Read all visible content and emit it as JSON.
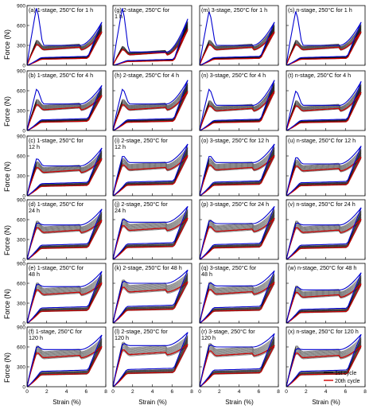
{
  "figure": {
    "ylabel": "Force (N)",
    "xlabel": "Strain (%)",
    "x_ticks": [
      "0",
      "2",
      "4",
      "6",
      "8"
    ],
    "y_ticks": [
      "0",
      "300",
      "600",
      "900"
    ],
    "legend": {
      "entries": [
        {
          "label": "1st cycle",
          "color": "#000000"
        },
        {
          "label": "20th cycle",
          "color": "#d10000"
        }
      ],
      "blue_color": "#0000d0"
    }
  },
  "chart_data": [
    {
      "type": "line",
      "panel": "a",
      "label": "(a) 1-stage, 250°C for 1 h",
      "label2": "",
      "row": 0,
      "col": 0,
      "plateau": 300,
      "first_peak": 900,
      "maxF": 650,
      "xlim": [
        0,
        8
      ],
      "ylim": [
        0,
        900
      ]
    },
    {
      "type": "line",
      "panel": "g",
      "label": "(g) 2-stage, 250°C for",
      "label2": "1 h",
      "row": 0,
      "col": 1,
      "plateau": 200,
      "first_peak": 900,
      "maxF": 700,
      "xlim": [
        0,
        8
      ],
      "ylim": [
        0,
        900
      ]
    },
    {
      "type": "line",
      "panel": "m",
      "label": "(m) 3-stage, 250°C for 1 h",
      "label2": "",
      "row": 0,
      "col": 2,
      "plateau": 300,
      "first_peak": 850,
      "maxF": 650,
      "xlim": [
        0,
        8
      ],
      "ylim": [
        0,
        900
      ]
    },
    {
      "type": "line",
      "panel": "s",
      "label": "(s) n-stage, 250°C for 1 h",
      "label2": "",
      "row": 0,
      "col": 3,
      "plateau": 300,
      "first_peak": 850,
      "maxF": 650,
      "xlim": [
        0,
        8
      ],
      "ylim": [
        0,
        900
      ]
    },
    {
      "type": "line",
      "panel": "b",
      "label": "(b) 1-stage, 250°C for 4 h",
      "label2": "",
      "row": 1,
      "col": 0,
      "plateau": 400,
      "first_peak": 650,
      "maxF": 680,
      "xlim": [
        0,
        8
      ],
      "ylim": [
        0,
        900
      ]
    },
    {
      "type": "line",
      "panel": "h",
      "label": "(h) 2-stage, 250°C for 4 h",
      "label2": "",
      "row": 1,
      "col": 1,
      "plateau": 400,
      "first_peak": 650,
      "maxF": 760,
      "xlim": [
        0,
        8
      ],
      "ylim": [
        0,
        900
      ]
    },
    {
      "type": "line",
      "panel": "n",
      "label": "(n) 3-stage, 250°C for 4 h",
      "label2": "",
      "row": 1,
      "col": 2,
      "plateau": 380,
      "first_peak": 650,
      "maxF": 760,
      "xlim": [
        0,
        8
      ],
      "ylim": [
        0,
        900
      ]
    },
    {
      "type": "line",
      "panel": "t",
      "label": "(t) n-stage, 250°C for 4 h",
      "label2": "",
      "row": 1,
      "col": 3,
      "plateau": 380,
      "first_peak": 620,
      "maxF": 740,
      "xlim": [
        0,
        8
      ],
      "ylim": [
        0,
        900
      ]
    },
    {
      "type": "line",
      "panel": "c",
      "label": "(c) 1-stage, 250°C for",
      "label2": "12 h",
      "row": 2,
      "col": 0,
      "plateau": 450,
      "first_peak": 580,
      "maxF": 720,
      "xlim": [
        0,
        8
      ],
      "ylim": [
        0,
        900
      ]
    },
    {
      "type": "line",
      "panel": "i",
      "label": "(i) 2-stage, 250°C for",
      "label2": "12 h",
      "row": 2,
      "col": 1,
      "plateau": 500,
      "first_peak": 620,
      "maxF": 780,
      "xlim": [
        0,
        8
      ],
      "ylim": [
        0,
        900
      ]
    },
    {
      "type": "line",
      "panel": "o",
      "label": "(o) 3-stage, 250°C for 12 h",
      "label2": "",
      "row": 2,
      "col": 2,
      "plateau": 500,
      "first_peak": 620,
      "maxF": 780,
      "xlim": [
        0,
        8
      ],
      "ylim": [
        0,
        900
      ]
    },
    {
      "type": "line",
      "panel": "u",
      "label": "(u) n-stage, 250°C for 12 h",
      "label2": "",
      "row": 2,
      "col": 3,
      "plateau": 480,
      "first_peak": 600,
      "maxF": 750,
      "xlim": [
        0,
        8
      ],
      "ylim": [
        0,
        900
      ]
    },
    {
      "type": "line",
      "panel": "d",
      "label": "(d) 1-stage, 250°C for",
      "label2": "24 h",
      "row": 3,
      "col": 0,
      "plateau": 520,
      "first_peak": 560,
      "maxF": 760,
      "xlim": [
        0,
        8
      ],
      "ylim": [
        0,
        900
      ]
    },
    {
      "type": "line",
      "panel": "j",
      "label": "(j) 2-stage, 250°C for",
      "label2": "24 h",
      "row": 3,
      "col": 1,
      "plateau": 560,
      "first_peak": 620,
      "maxF": 800,
      "xlim": [
        0,
        8
      ],
      "ylim": [
        0,
        900
      ]
    },
    {
      "type": "line",
      "panel": "p",
      "label": "(p) 3-stage, 250°C for 24 h",
      "label2": "",
      "row": 3,
      "col": 2,
      "plateau": 540,
      "first_peak": 600,
      "maxF": 800,
      "xlim": [
        0,
        8
      ],
      "ylim": [
        0,
        900
      ]
    },
    {
      "type": "line",
      "panel": "v",
      "label": "(v) n-stage, 250°C for 24 h",
      "label2": "",
      "row": 3,
      "col": 3,
      "plateau": 520,
      "first_peak": 560,
      "maxF": 780,
      "xlim": [
        0,
        8
      ],
      "ylim": [
        0,
        900
      ]
    },
    {
      "type": "line",
      "panel": "e",
      "label": "(e) 1-stage, 250°C for",
      "label2": "48 h",
      "row": 4,
      "col": 0,
      "plateau": 550,
      "first_peak": 600,
      "maxF": 780,
      "xlim": [
        0,
        8
      ],
      "ylim": [
        0,
        900
      ]
    },
    {
      "type": "line",
      "panel": "k",
      "label": "(k) 2-stage, 250°C for 48 h",
      "label2": "",
      "row": 4,
      "col": 1,
      "plateau": 600,
      "first_peak": 640,
      "maxF": 800,
      "xlim": [
        0,
        8
      ],
      "ylim": [
        0,
        900
      ]
    },
    {
      "type": "line",
      "panel": "q",
      "label": "(q) 3-stage, 250°C for",
      "label2": "48 h",
      "row": 4,
      "col": 2,
      "plateau": 560,
      "first_peak": 620,
      "maxF": 790,
      "xlim": [
        0,
        8
      ],
      "ylim": [
        0,
        900
      ]
    },
    {
      "type": "line",
      "panel": "w",
      "label": "(w) n-stage, 250°C for 48 h",
      "label2": "",
      "row": 4,
      "col": 3,
      "plateau": 500,
      "first_peak": 560,
      "maxF": 760,
      "xlim": [
        0,
        8
      ],
      "ylim": [
        0,
        900
      ]
    },
    {
      "type": "line",
      "panel": "f",
      "label": "(f) 1-stage, 250°C for",
      "label2": "120 h",
      "row": 5,
      "col": 0,
      "plateau": 560,
      "first_peak": 620,
      "maxF": 780,
      "xlim": [
        0,
        8
      ],
      "ylim": [
        0,
        900
      ]
    },
    {
      "type": "line",
      "panel": "l",
      "label": "(l) 2-stage, 250°C for",
      "label2": "120 h",
      "row": 5,
      "col": 1,
      "plateau": 620,
      "first_peak": 660,
      "maxF": 820,
      "xlim": [
        0,
        8
      ],
      "ylim": [
        0,
        900
      ]
    },
    {
      "type": "line",
      "panel": "r",
      "label": "(r) 3-stage, 250°C for",
      "label2": "120 h",
      "row": 5,
      "col": 2,
      "plateau": 600,
      "first_peak": 640,
      "maxF": 800,
      "xlim": [
        0,
        8
      ],
      "ylim": [
        0,
        900
      ]
    },
    {
      "type": "line",
      "panel": "x",
      "label": "(x) n-stage, 250°C for 120 h",
      "label2": "",
      "row": 5,
      "col": 3,
      "plateau": 560,
      "first_peak": 580,
      "maxF": 790,
      "xlim": [
        0,
        8
      ],
      "ylim": [
        0,
        900
      ]
    }
  ]
}
